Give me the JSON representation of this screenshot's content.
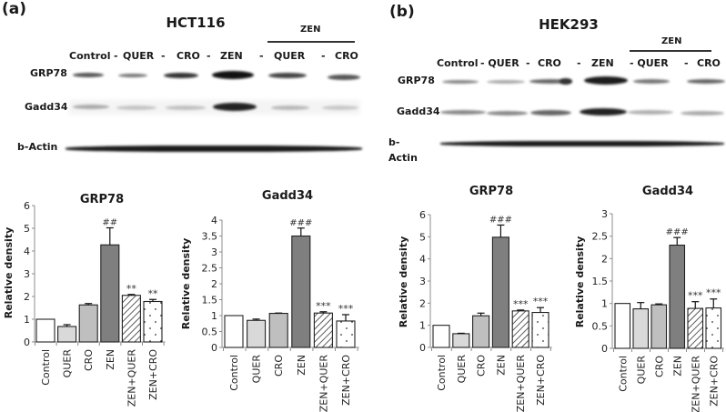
{
  "panels": [
    {
      "letter": "(a)",
      "cell_line": "HCT116",
      "zen_group_label": "ZEN",
      "lane_labels": [
        "Control",
        "-",
        "QUER",
        "-",
        "CRO",
        "-",
        "ZEN",
        "-",
        "QUER",
        "-",
        "CRO"
      ],
      "row_labels": [
        "GRP78",
        "Gadd34",
        "b-Actin"
      ]
    },
    {
      "letter": "(b)",
      "cell_line": "HEK293",
      "zen_group_label": "ZEN",
      "lane_labels": [
        "Control",
        "- QUER",
        "-",
        "CRO",
        "-",
        "ZEN",
        "- QUER",
        "-",
        "CRO"
      ],
      "row_labels": [
        "GRP78",
        "Gadd34",
        "b-",
        "Actin"
      ]
    }
  ],
  "colors": {
    "control": "#ffffff",
    "quer": "#d9d9d9",
    "cro": "#bfbfbf",
    "zen": "#7f7f7f",
    "zen_quer": "hatch",
    "zen_cro": "dots",
    "axis": "#8c8c8c",
    "bar_stroke": "#222222"
  },
  "chart_data": [
    {
      "panel": "(a)",
      "type": "bar",
      "title": "GRP78",
      "xlabel": "",
      "ylabel": "Relative density",
      "categories": [
        "Control",
        "QUER",
        "CRO",
        "ZEN",
        "ZEN+QUER",
        "ZEN+CRO"
      ],
      "values": [
        1.0,
        0.68,
        1.63,
        4.27,
        2.05,
        1.78
      ],
      "errors": [
        0.0,
        0.08,
        0.06,
        0.75,
        0.04,
        0.09
      ],
      "annotations": [
        "",
        "",
        "",
        "##",
        "**",
        "**"
      ],
      "yticks": [
        "0",
        "1",
        "2",
        "3",
        "4",
        "5",
        "6"
      ],
      "ylim": [
        0,
        6
      ],
      "grid": false,
      "legend": "none"
    },
    {
      "panel": "(a)",
      "type": "bar",
      "title": "Gadd34",
      "xlabel": "",
      "ylabel": "Relative density",
      "categories": [
        "Control",
        "QUER",
        "CRO",
        "ZEN",
        "ZEN+QUER",
        "ZEN+CRO"
      ],
      "values": [
        1.0,
        0.85,
        1.07,
        3.5,
        1.08,
        0.83
      ],
      "errors": [
        0.0,
        0.04,
        0.01,
        0.25,
        0.04,
        0.2
      ],
      "annotations": [
        "",
        "",
        "",
        "###",
        "***",
        "***"
      ],
      "yticks": [
        "0",
        "0.5",
        "1",
        "1.5",
        "2",
        "2.5",
        "3",
        "3.5",
        "4"
      ],
      "ylim": [
        0,
        4
      ],
      "grid": false,
      "legend": "none"
    },
    {
      "panel": "(b)",
      "type": "bar",
      "title": "GRP78",
      "xlabel": "",
      "ylabel": "Relative density",
      "categories": [
        "Control",
        "QUER",
        "CRO",
        "ZEN",
        "ZEN+QUER",
        "ZEN+CRO"
      ],
      "values": [
        1.0,
        0.62,
        1.43,
        4.98,
        1.65,
        1.58
      ],
      "errors": [
        0.0,
        0.02,
        0.12,
        0.55,
        0.04,
        0.22
      ],
      "annotations": [
        "",
        "",
        "",
        "###",
        "***",
        "***"
      ],
      "yticks": [
        "0",
        "1",
        "2",
        "3",
        "4",
        "5",
        "6"
      ],
      "ylim": [
        0,
        6
      ],
      "grid": false,
      "legend": "none"
    },
    {
      "panel": "(b)",
      "type": "bar",
      "title": "Gadd34",
      "xlabel": "",
      "ylabel": "Relative density",
      "categories": [
        "Control",
        "QUER",
        "CRO",
        "ZEN",
        "ZEN+QUER",
        "ZEN+CRO"
      ],
      "values": [
        1.0,
        0.88,
        0.97,
        2.3,
        0.89,
        0.9
      ],
      "errors": [
        0.0,
        0.14,
        0.02,
        0.17,
        0.15,
        0.2
      ],
      "annotations": [
        "",
        "",
        "",
        "###",
        "***",
        "***"
      ],
      "yticks": [
        "0",
        "0.5",
        "1",
        "1.5",
        "2",
        "2.5",
        "3"
      ],
      "ylim": [
        0,
        3
      ],
      "grid": false,
      "legend": "none"
    }
  ]
}
